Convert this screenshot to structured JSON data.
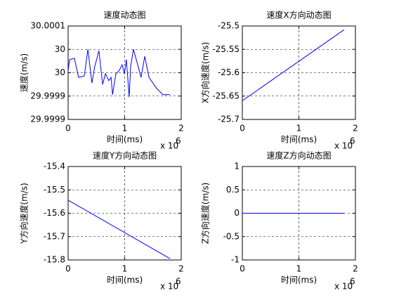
{
  "chart_data": [
    {
      "type": "line",
      "title": "速度动态图",
      "xlabel": "时间(ms)",
      "ylabel": "速度(m/s)",
      "x_multiplier": "x 10",
      "x_exponent": "6",
      "x": [
        0,
        25000,
        110000,
        185000,
        285000,
        350000,
        420000,
        470000,
        545000,
        610000,
        660000,
        720000,
        760000,
        785000,
        845000,
        905000,
        955000,
        995000,
        1030000,
        1080000,
        1105000,
        1155000,
        1230000,
        1290000,
        1355000,
        1430000,
        1555000,
        1675000,
        1800000
      ],
      "values": [
        29.999955,
        29.999978,
        29.999981,
        29.99994,
        29.999943,
        30.0,
        29.999928,
        29.999963,
        29.999997,
        29.999925,
        29.999948,
        29.999933,
        29.99994,
        29.999903,
        29.999948,
        29.999955,
        29.999967,
        29.999948,
        29.999978,
        29.999898,
        29.999963,
        30.0,
        29.999967,
        29.99994,
        29.999985,
        29.99994,
        29.999918,
        29.999903,
        29.999903
      ],
      "color": "#0000ff",
      "grid": true,
      "xlim": [
        0,
        2000000
      ],
      "xticks": [
        {
          "value": 0,
          "label": "0"
        },
        {
          "value": 1000000,
          "label": "1"
        },
        {
          "value": 2000000,
          "label": "2"
        }
      ],
      "ylim": [
        29.99985,
        30.00005
      ],
      "yticks": [
        {
          "value": 29.99985,
          "label": "29.9999"
        },
        {
          "value": 29.9999,
          "label": "29.9999"
        },
        {
          "value": 29.99995,
          "label": "30"
        },
        {
          "value": 30.0,
          "label": "30"
        },
        {
          "value": 30.00005,
          "label": "30.0001"
        }
      ]
    },
    {
      "type": "line",
      "title": "速度X方向动态图",
      "xlabel": "时间(ms)",
      "ylabel": "X方向速度(m/s)",
      "x_multiplier": "x 10",
      "x_exponent": "6",
      "x": [
        0,
        1800000
      ],
      "values": [
        -25.66,
        -25.508
      ],
      "color": "#0000ff",
      "grid": true,
      "xlim": [
        0,
        2000000
      ],
      "xticks": [
        {
          "value": 0,
          "label": "0"
        },
        {
          "value": 1000000,
          "label": "1"
        },
        {
          "value": 2000000,
          "label": "2"
        }
      ],
      "ylim": [
        -25.7,
        -25.5
      ],
      "yticks": [
        -25.7,
        -25.65,
        -25.6,
        -25.55,
        -25.5
      ]
    },
    {
      "type": "line",
      "title": "速度Y方向动态图",
      "xlabel": "时间(ms)",
      "ylabel": "Y方向速度(m/s)",
      "x_multiplier": "x 10",
      "x_exponent": "6",
      "x": [
        0,
        1800000
      ],
      "values": [
        -15.544,
        -15.794
      ],
      "color": "#0000ff",
      "grid": true,
      "xlim": [
        0,
        2000000
      ],
      "xticks": [
        {
          "value": 0,
          "label": "0"
        },
        {
          "value": 1000000,
          "label": "1"
        },
        {
          "value": 2000000,
          "label": "2"
        }
      ],
      "ylim": [
        -15.8,
        -15.4
      ],
      "yticks": [
        -15.8,
        -15.7,
        -15.6,
        -15.5,
        -15.4
      ]
    },
    {
      "type": "line",
      "title": "速度Z方向动态图",
      "xlabel": "时间(ms)",
      "ylabel": "Z方向速度(m/s)",
      "x_multiplier": "x 10",
      "x_exponent": "6",
      "x": [
        0,
        1800000
      ],
      "values": [
        0,
        0
      ],
      "color": "#0000ff",
      "grid": true,
      "xlim": [
        0,
        2000000
      ],
      "xticks": [
        {
          "value": 0,
          "label": "0"
        },
        {
          "value": 1000000,
          "label": "1"
        },
        {
          "value": 2000000,
          "label": "2"
        }
      ],
      "ylim": [
        -1,
        1
      ],
      "yticks": [
        -1,
        -0.5,
        0,
        0.5,
        1
      ]
    }
  ]
}
